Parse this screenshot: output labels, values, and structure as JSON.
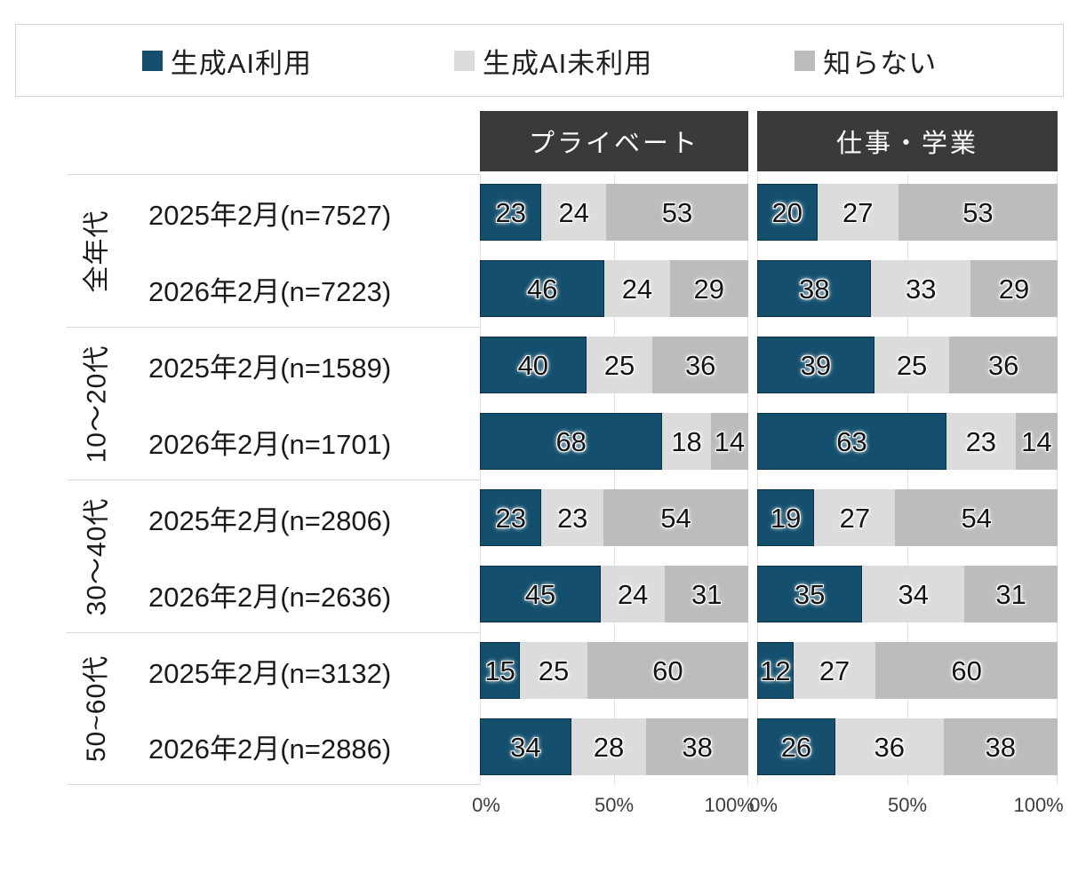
{
  "legend": {
    "items": [
      {
        "label": "生成AI利用",
        "color": "#14506E"
      },
      {
        "label": "生成AI未利用",
        "color": "#DCDCDC"
      },
      {
        "label": "知らない",
        "color": "#BCBCBC"
      }
    ]
  },
  "axis": {
    "ticks": [
      "0%",
      "50%",
      "100%"
    ]
  },
  "colors": {
    "header_bg": "#3A3A3A",
    "header_text": "#FFFFFF",
    "separator": "#D9D9D9",
    "gridline": "#E2E2E2"
  },
  "chart_data": {
    "type": "bar",
    "orientation": "horizontal",
    "stacked": true,
    "unit": "percent",
    "xlim": [
      0,
      100
    ],
    "x_ticks": [
      "0%",
      "50%",
      "100%"
    ],
    "legend_position": "top",
    "series_names": [
      "生成AI利用",
      "生成AI未利用",
      "知らない"
    ],
    "panels": [
      "プライベート",
      "仕事・学業"
    ],
    "groups": [
      {
        "group": "全年代",
        "rows": [
          {
            "label": "2025年2月(n=7527)",
            "private": [
              23,
              24,
              53
            ],
            "work": [
              20,
              27,
              53
            ]
          },
          {
            "label": "2026年2月(n=7223)",
            "private": [
              46,
              24,
              29
            ],
            "work": [
              38,
              33,
              29
            ]
          }
        ]
      },
      {
        "group": "10〜20代",
        "rows": [
          {
            "label": "2025年2月(n=1589)",
            "private": [
              40,
              25,
              36
            ],
            "work": [
              39,
              25,
              36
            ]
          },
          {
            "label": "2026年2月(n=1701)",
            "private": [
              68,
              18,
              14
            ],
            "work": [
              63,
              23,
              14
            ]
          }
        ]
      },
      {
        "group": "30〜40代",
        "rows": [
          {
            "label": "2025年2月(n=2806)",
            "private": [
              23,
              23,
              54
            ],
            "work": [
              19,
              27,
              54
            ]
          },
          {
            "label": "2026年2月(n=2636)",
            "private": [
              45,
              24,
              31
            ],
            "work": [
              35,
              34,
              31
            ]
          }
        ]
      },
      {
        "group": "50~60代",
        "rows": [
          {
            "label": "2025年2月(n=3132)",
            "private": [
              15,
              25,
              60
            ],
            "work": [
              12,
              27,
              60
            ]
          },
          {
            "label": "2026年2月(n=2886)",
            "private": [
              34,
              28,
              38
            ],
            "work": [
              26,
              36,
              38
            ]
          }
        ]
      }
    ]
  }
}
